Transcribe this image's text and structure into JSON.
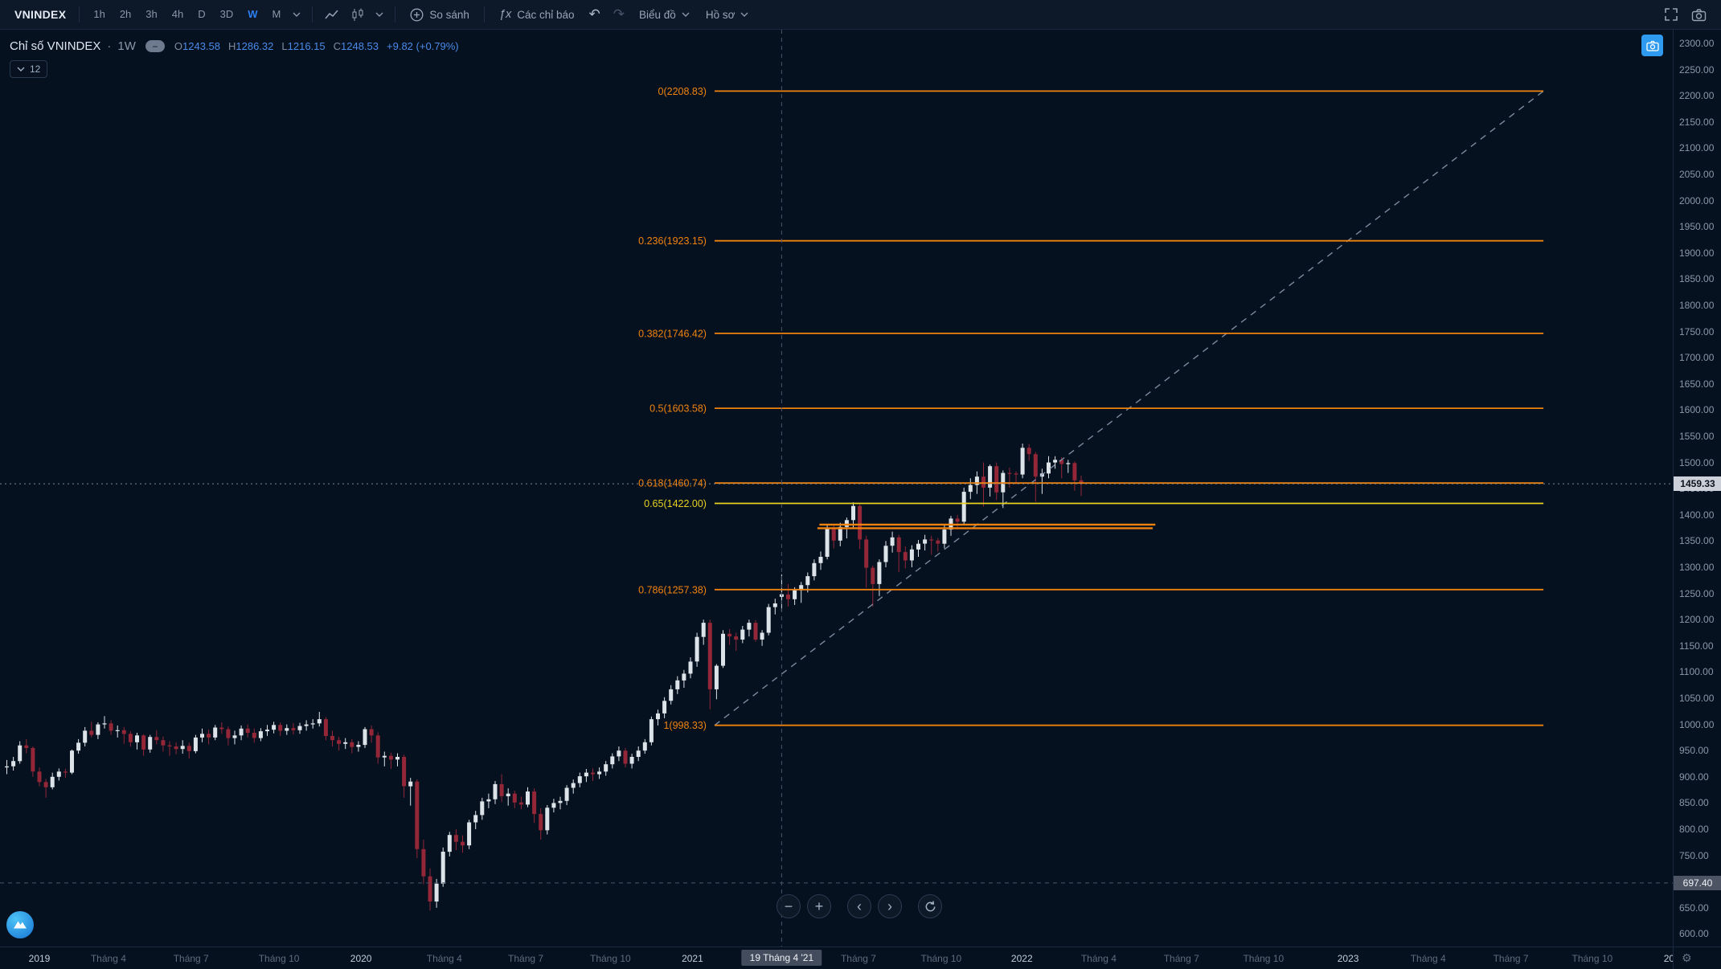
{
  "toolbar": {
    "symbol": "VNINDEX",
    "timeframes": [
      "1h",
      "2h",
      "3h",
      "4h",
      "D",
      "3D",
      "W",
      "M"
    ],
    "active_timeframe": "W",
    "compare_label": "So sánh",
    "indicators_label": "Các chỉ báo",
    "chart_menu_label": "Biểu đồ",
    "profile_menu_label": "Hồ sơ"
  },
  "icons": {
    "hide_glyph": "−",
    "fx_glyph": "ƒx",
    "undo_glyph": "↶",
    "redo_glyph": "↷",
    "zoom_out_glyph": "−",
    "zoom_in_glyph": "+",
    "pan_left_glyph": "‹",
    "pan_right_glyph": "›",
    "settings_glyph": "⚙"
  },
  "legend": {
    "title": "Chỉ số VNINDEX",
    "separator": "·",
    "interval": "1W",
    "open_label": "O",
    "open": "1243.58",
    "high_label": "H",
    "high": "1286.32",
    "low_label": "L",
    "low": "1216.15",
    "close_label": "C",
    "close": "1248.53",
    "change": "+9.82 (+0.79%)",
    "collapsed_badge": "12"
  },
  "colors": {
    "up_candle": "#dce3e9",
    "down_candle": "#932637",
    "accent_blue": "#2d7ff0",
    "fib_orange": "#f0830d",
    "fib_yellow": "#e8d21f",
    "crosshair": "#4a5668"
  },
  "chart_data": {
    "type": "candlestick",
    "symbol": "VNINDEX",
    "interval": "1W",
    "price_axis": {
      "min": 600,
      "max": 2300,
      "step": 50
    },
    "last_price": {
      "value": 1459.33,
      "label": "1459.33"
    },
    "crosshair": {
      "week": 119,
      "price": 697.4,
      "price_label": "697.40",
      "time_label": "19 Tháng 4 '21"
    },
    "fib_retracement": {
      "p1": {
        "week": 108.7,
        "price": 998.33
      },
      "p2": {
        "week": 236,
        "price": 2208.83
      },
      "levels": [
        {
          "level": 0,
          "price": 2208.83,
          "label": "0(2208.83)",
          "color": "#f0830d"
        },
        {
          "level": 0.236,
          "price": 1923.15,
          "label": "0.236(1923.15)",
          "color": "#f0830d"
        },
        {
          "level": 0.382,
          "price": 1746.42,
          "label": "0.382(1746.42)",
          "color": "#f0830d"
        },
        {
          "level": 0.5,
          "price": 1603.58,
          "label": "0.5(1603.58)",
          "color": "#f0830d"
        },
        {
          "level": 0.618,
          "price": 1460.74,
          "label": "0.618(1460.74)",
          "color": "#f0830d"
        },
        {
          "level": 0.65,
          "price": 1422.0,
          "label": "0.65(1422.00)",
          "color": "#e8d21f"
        },
        {
          "level": 0.786,
          "price": 1257.38,
          "label": "0.786(1257.38)",
          "color": "#f0830d"
        },
        {
          "level": 1,
          "price": 998.33,
          "label": "1(998.33)",
          "color": "#f0830d"
        }
      ]
    },
    "horizontal_segments": [
      {
        "price": 1381.5,
        "week_start": 124.8,
        "week_end": 176.4,
        "color": "#f0830d"
      },
      {
        "price": 1374.5,
        "week_start": 124.5,
        "week_end": 176.0,
        "color": "#f0830d"
      }
    ],
    "time_ticks": [
      {
        "label": "2019",
        "week": 5,
        "major": true
      },
      {
        "label": "Tháng 4",
        "week": 15.6
      },
      {
        "label": "Tháng 7",
        "week": 28.3
      },
      {
        "label": "Tháng 10",
        "week": 41.8
      },
      {
        "label": "2020",
        "week": 54.4,
        "major": true
      },
      {
        "label": "Tháng 4",
        "week": 67.2
      },
      {
        "label": "Tháng 7",
        "week": 79.7
      },
      {
        "label": "Tháng 10",
        "week": 92.7
      },
      {
        "label": "2021",
        "week": 105.3,
        "major": true
      },
      {
        "label": "Tháng 7",
        "week": 130.8
      },
      {
        "label": "Tháng 10",
        "week": 143.5
      },
      {
        "label": "2022",
        "week": 155.9,
        "major": true
      },
      {
        "label": "Tháng 4",
        "week": 167.7
      },
      {
        "label": "Tháng 7",
        "week": 180.4
      },
      {
        "label": "Tháng 10",
        "week": 193.0
      },
      {
        "label": "2023",
        "week": 206.0,
        "major": true
      },
      {
        "label": "Tháng 4",
        "week": 218.3
      },
      {
        "label": "Tháng 7",
        "week": 231.0
      },
      {
        "label": "Tháng 10",
        "week": 243.5
      },
      {
        "label": "20",
        "week": 255.3,
        "major": true
      }
    ],
    "candles": [
      [
        918,
        932,
        905,
        920
      ],
      [
        920,
        938,
        912,
        930
      ],
      [
        930,
        968,
        925,
        960
      ],
      [
        960,
        972,
        945,
        955
      ],
      [
        955,
        958,
        900,
        910
      ],
      [
        910,
        918,
        882,
        890
      ],
      [
        890,
        896,
        860,
        880
      ],
      [
        880,
        908,
        876,
        900
      ],
      [
        900,
        916,
        893,
        910
      ],
      [
        910,
        915,
        898,
        908
      ],
      [
        908,
        952,
        905,
        950
      ],
      [
        950,
        972,
        944,
        965
      ],
      [
        965,
        995,
        958,
        988
      ],
      [
        988,
        1005,
        975,
        980
      ],
      [
        980,
        1004,
        972,
        1000
      ],
      [
        1000,
        1016,
        992,
        1002
      ],
      [
        1002,
        1008,
        980,
        988
      ],
      [
        988,
        998,
        975,
        989
      ],
      [
        989,
        995,
        963,
        982
      ],
      [
        982,
        987,
        958,
        966
      ],
      [
        966,
        984,
        952,
        979
      ],
      [
        979,
        981,
        940,
        952
      ],
      [
        952,
        980,
        946,
        976
      ],
      [
        976,
        989,
        962,
        970
      ],
      [
        970,
        977,
        948,
        960
      ],
      [
        960,
        968,
        940,
        958
      ],
      [
        958,
        966,
        943,
        953
      ],
      [
        953,
        970,
        944,
        959
      ],
      [
        959,
        965,
        935,
        949
      ],
      [
        949,
        980,
        945,
        975
      ],
      [
        975,
        992,
        966,
        982
      ],
      [
        982,
        990,
        962,
        975
      ],
      [
        975,
        999,
        970,
        994
      ],
      [
        994,
        1004,
        982,
        991
      ],
      [
        991,
        996,
        960,
        974
      ],
      [
        974,
        988,
        962,
        979
      ],
      [
        979,
        998,
        970,
        992
      ],
      [
        992,
        1000,
        975,
        984
      ],
      [
        984,
        992,
        965,
        974
      ],
      [
        974,
        993,
        968,
        987
      ],
      [
        987,
        999,
        978,
        990
      ],
      [
        990,
        1005,
        983,
        999
      ],
      [
        999,
        1004,
        978,
        988
      ],
      [
        988,
        1000,
        980,
        993
      ],
      [
        993,
        1002,
        981,
        989
      ],
      [
        989,
        1003,
        982,
        997
      ],
      [
        997,
        1008,
        988,
        1000
      ],
      [
        1000,
        1010,
        992,
        1002
      ],
      [
        1002,
        1024,
        996,
        1010
      ],
      [
        1010,
        1014,
        970,
        978
      ],
      [
        978,
        988,
        958,
        970
      ],
      [
        970,
        976,
        950,
        963
      ],
      [
        963,
        974,
        953,
        966
      ],
      [
        966,
        972,
        945,
        957
      ],
      [
        957,
        968,
        948,
        961
      ],
      [
        961,
        995,
        955,
        991
      ],
      [
        991,
        998,
        965,
        979
      ],
      [
        979,
        985,
        925,
        937
      ],
      [
        937,
        948,
        920,
        940
      ],
      [
        940,
        946,
        915,
        933
      ],
      [
        933,
        945,
        920,
        938
      ],
      [
        938,
        942,
        860,
        882
      ],
      [
        882,
        898,
        845,
        891
      ],
      [
        891,
        895,
        745,
        762
      ],
      [
        762,
        780,
        695,
        710
      ],
      [
        710,
        725,
        645,
        662
      ],
      [
        662,
        705,
        650,
        696
      ],
      [
        696,
        765,
        690,
        757
      ],
      [
        757,
        795,
        748,
        789
      ],
      [
        789,
        800,
        760,
        776
      ],
      [
        776,
        788,
        755,
        769
      ],
      [
        769,
        818,
        762,
        813
      ],
      [
        813,
        835,
        800,
        827
      ],
      [
        827,
        860,
        818,
        853
      ],
      [
        853,
        868,
        840,
        857
      ],
      [
        857,
        892,
        848,
        886
      ],
      [
        886,
        905,
        852,
        863
      ],
      [
        863,
        878,
        845,
        868
      ],
      [
        868,
        874,
        840,
        851
      ],
      [
        851,
        862,
        838,
        847
      ],
      [
        847,
        880,
        842,
        872
      ],
      [
        872,
        878,
        812,
        829
      ],
      [
        829,
        840,
        780,
        798
      ],
      [
        798,
        846,
        790,
        841
      ],
      [
        841,
        858,
        832,
        850
      ],
      [
        850,
        862,
        838,
        854
      ],
      [
        854,
        884,
        846,
        879
      ],
      [
        879,
        895,
        868,
        888
      ],
      [
        888,
        908,
        880,
        901
      ],
      [
        901,
        915,
        890,
        908
      ],
      [
        908,
        916,
        892,
        905
      ],
      [
        905,
        918,
        896,
        910
      ],
      [
        910,
        930,
        902,
        924
      ],
      [
        924,
        945,
        916,
        939
      ],
      [
        939,
        958,
        930,
        950
      ],
      [
        950,
        955,
        918,
        925
      ],
      [
        925,
        944,
        916,
        938
      ],
      [
        938,
        958,
        930,
        950
      ],
      [
        950,
        972,
        944,
        966
      ],
      [
        966,
        1015,
        960,
        1010
      ],
      [
        1010,
        1028,
        998,
        1021
      ],
      [
        1021,
        1052,
        1012,
        1045
      ],
      [
        1045,
        1075,
        1038,
        1067
      ],
      [
        1067,
        1092,
        1058,
        1084
      ],
      [
        1084,
        1104,
        1070,
        1097
      ],
      [
        1097,
        1128,
        1088,
        1120
      ],
      [
        1120,
        1175,
        1110,
        1167
      ],
      [
        1167,
        1200,
        1152,
        1194
      ],
      [
        1194,
        1200,
        1029,
        1067
      ],
      [
        1067,
        1115,
        1048,
        1112
      ],
      [
        1112,
        1180,
        1108,
        1173
      ],
      [
        1173,
        1182,
        1152,
        1168
      ],
      [
        1168,
        1175,
        1140,
        1162
      ],
      [
        1162,
        1188,
        1155,
        1181
      ],
      [
        1181,
        1200,
        1168,
        1194
      ],
      [
        1194,
        1199,
        1158,
        1162
      ],
      [
        1162,
        1180,
        1150,
        1175
      ],
      [
        1175,
        1230,
        1170,
        1224
      ],
      [
        1224,
        1240,
        1210,
        1231
      ],
      [
        1243.58,
        1286.32,
        1216.15,
        1248.53
      ],
      [
        1248,
        1268,
        1225,
        1239
      ],
      [
        1239,
        1262,
        1228,
        1256
      ],
      [
        1256,
        1272,
        1232,
        1266
      ],
      [
        1266,
        1290,
        1252,
        1283
      ],
      [
        1283,
        1315,
        1275,
        1308
      ],
      [
        1308,
        1330,
        1295,
        1320
      ],
      [
        1320,
        1380,
        1315,
        1374
      ],
      [
        1374,
        1382,
        1336,
        1351
      ],
      [
        1351,
        1385,
        1340,
        1377
      ],
      [
        1377,
        1395,
        1355,
        1390
      ],
      [
        1390,
        1424,
        1376,
        1417
      ],
      [
        1417,
        1420,
        1335,
        1353
      ],
      [
        1353,
        1360,
        1261,
        1299
      ],
      [
        1299,
        1303,
        1225,
        1268
      ],
      [
        1268,
        1315,
        1245,
        1310
      ],
      [
        1310,
        1350,
        1300,
        1341
      ],
      [
        1341,
        1368,
        1328,
        1357
      ],
      [
        1357,
        1362,
        1291,
        1329
      ],
      [
        1329,
        1340,
        1298,
        1313
      ],
      [
        1313,
        1342,
        1300,
        1334
      ],
      [
        1334,
        1352,
        1320,
        1345
      ],
      [
        1345,
        1362,
        1332,
        1353
      ],
      [
        1353,
        1360,
        1324,
        1351
      ],
      [
        1351,
        1356,
        1330,
        1345
      ],
      [
        1345,
        1380,
        1336,
        1372
      ],
      [
        1372,
        1398,
        1360,
        1393
      ],
      [
        1393,
        1400,
        1372,
        1387
      ],
      [
        1387,
        1452,
        1380,
        1444
      ],
      [
        1444,
        1470,
        1430,
        1457
      ],
      [
        1457,
        1483,
        1440,
        1473
      ],
      [
        1473,
        1500,
        1416,
        1452
      ],
      [
        1452,
        1496,
        1435,
        1493
      ],
      [
        1493,
        1500,
        1428,
        1443
      ],
      [
        1443,
        1485,
        1413,
        1480
      ],
      [
        1480,
        1490,
        1452,
        1479
      ],
      [
        1479,
        1483,
        1458,
        1477
      ],
      [
        1477,
        1536,
        1470,
        1528
      ],
      [
        1528,
        1535,
        1503,
        1516
      ],
      [
        1516,
        1520,
        1425,
        1473
      ],
      [
        1473,
        1488,
        1440,
        1479
      ],
      [
        1479,
        1512,
        1470,
        1500
      ],
      [
        1500,
        1512,
        1488,
        1505
      ],
      [
        1505,
        1510,
        1470,
        1497
      ],
      [
        1497,
        1505,
        1480,
        1499
      ],
      [
        1499,
        1502,
        1446,
        1466
      ],
      [
        1466,
        1475,
        1436,
        1459.33
      ]
    ]
  }
}
